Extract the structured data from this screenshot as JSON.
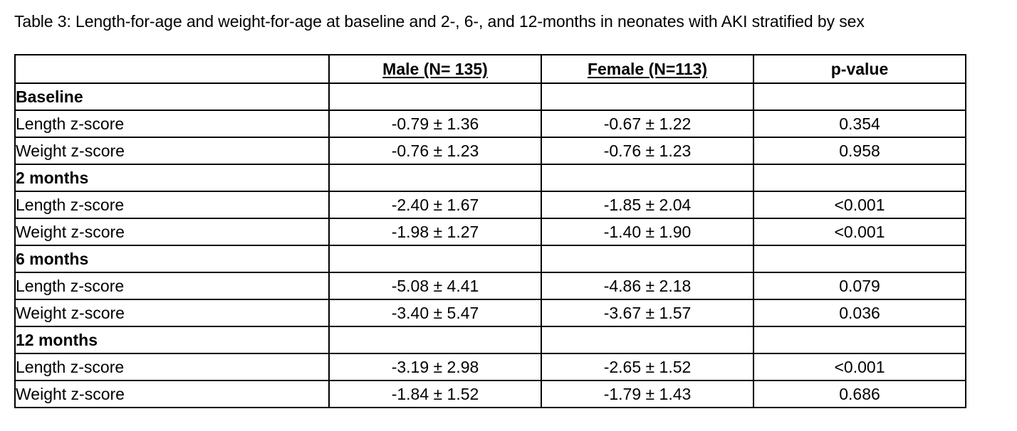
{
  "caption": "Table 3: Length-for-age and weight-for-age at baseline and 2-, 6-, and 12-months in neonates with AKI stratified by sex",
  "table": {
    "headers": [
      "",
      "Male (N= 135)",
      "Female (N=113)",
      "p-value"
    ],
    "sections": [
      {
        "title": "Baseline",
        "rows": [
          {
            "label": "Length z-score",
            "male": "-0.79 ± 1.36",
            "female": "-0.67 ± 1.22",
            "p": "0.354"
          },
          {
            "label": "Weight z-score",
            "male": "-0.76 ± 1.23",
            "female": "-0.76 ± 1.23",
            "p": "0.958"
          }
        ]
      },
      {
        "title": "2 months",
        "rows": [
          {
            "label": "Length z-score",
            "male": "-2.40 ± 1.67",
            "female": "-1.85 ± 2.04",
            "p": "<0.001"
          },
          {
            "label": "Weight z-score",
            "male": "-1.98 ± 1.27",
            "female": "-1.40 ± 1.90",
            "p": "<0.001"
          }
        ]
      },
      {
        "title": "6 months",
        "rows": [
          {
            "label": "Length z-score",
            "male": "-5.08 ± 4.41",
            "female": "-4.86 ± 2.18",
            "p": "0.079"
          },
          {
            "label": "Weight z-score",
            "male": "-3.40 ± 5.47",
            "female": "-3.67 ± 1.57",
            "p": "0.036"
          }
        ]
      },
      {
        "title": "12 months",
        "rows": [
          {
            "label": "Length z-score",
            "male": "-3.19 ± 2.98",
            "female": "-2.65 ± 1.52",
            "p": "<0.001"
          },
          {
            "label": "Weight z-score",
            "male": "-1.84 ± 1.52",
            "female": "-1.79 ± 1.43",
            "p": "0.686"
          }
        ]
      }
    ]
  }
}
